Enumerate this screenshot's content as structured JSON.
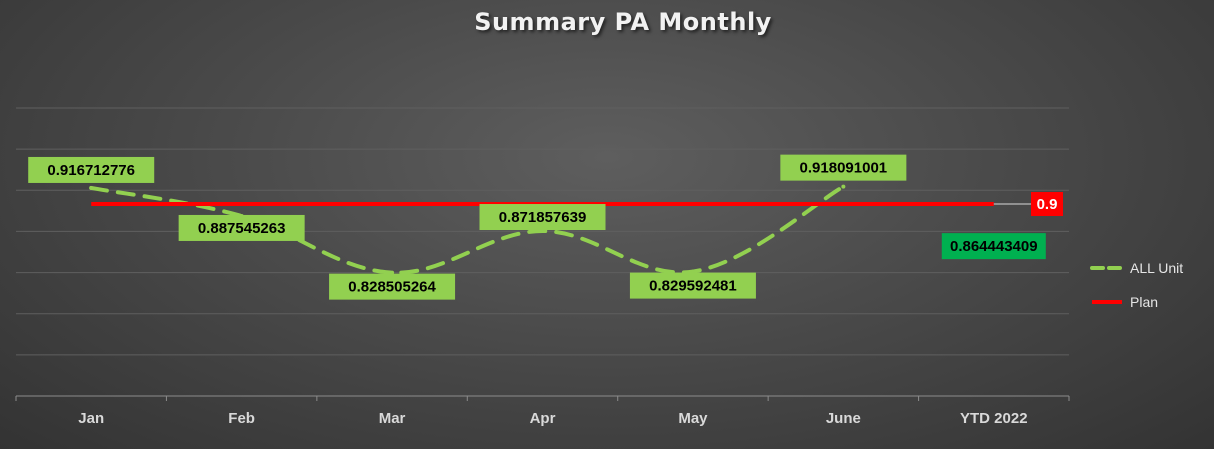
{
  "chart_data": {
    "type": "line",
    "title": "Summary PA Monthly",
    "categories": [
      "Jan",
      "Feb",
      "Mar",
      "Apr",
      "May",
      "June",
      "YTD 2022"
    ],
    "ylim": [
      0.7,
      1.0
    ],
    "grid": true,
    "legend_position": "right",
    "series": [
      {
        "name": "ALL Unit",
        "style": "dashed",
        "color": "#92d050",
        "values": [
          0.916712776,
          0.887545263,
          0.828505264,
          0.871857639,
          0.829592481,
          0.918091001,
          null
        ],
        "labels": [
          "0.916712776",
          "0.887545263",
          "0.828505264",
          "0.871857639",
          "0.829592481",
          "0.918091001",
          ""
        ]
      },
      {
        "name": "Plan",
        "style": "solid",
        "color": "#ff0000",
        "values": [
          0.9,
          0.9,
          0.9,
          0.9,
          0.9,
          0.9,
          0.9
        ],
        "end_label": "0.9"
      }
    ],
    "annotations": [
      {
        "category": "YTD 2022",
        "value": 0.864443409,
        "text": "0.864443409",
        "color": "#00b050"
      }
    ]
  }
}
